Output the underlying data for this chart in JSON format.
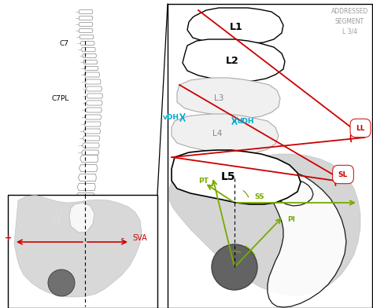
{
  "bg_color": "#ffffff",
  "red": "#cc0000",
  "cyan": "#00aacc",
  "green": "#77aa00",
  "gray_light": "#cccccc",
  "gray_mid": "#aaaaaa",
  "gray_dark": "#666666",
  "gray_pelvis": "#c8c8c8",
  "gray_fh": "#707070",
  "addressed_segment_text": "ADDRESSED\nSEGMENT\nL 3/4",
  "label_C7": "C7",
  "label_C7PL": "C7PL",
  "label_SVA": "SVA",
  "label_L1": "L1",
  "label_L2": "L2",
  "label_L3": "L3",
  "label_L4": "L4",
  "label_L5": "L5",
  "label_LL": "LL",
  "label_SL": "SL",
  "label_SS": "SS",
  "label_PI": "PI",
  "label_PT": "PT",
  "label_vDH": "vDH",
  "label_dDH": "dDH",
  "plus_sign": "+",
  "minus_sign": "-"
}
